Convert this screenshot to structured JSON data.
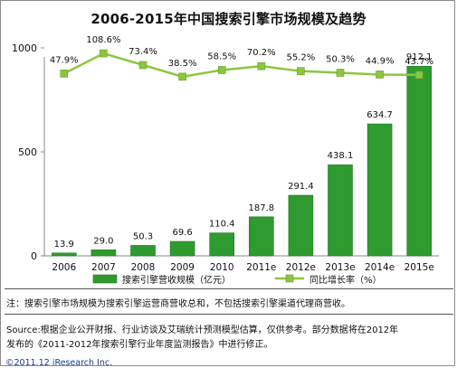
{
  "chart_data": {
    "type": "bar",
    "title": "2006-2015年中国搜索引擎市场规模及趋势",
    "categories": [
      "2006",
      "2007",
      "2008",
      "2009",
      "2010",
      "2011e",
      "2012e",
      "2013e",
      "2014e",
      "2015e"
    ],
    "series": [
      {
        "name": "搜索引擎营收规模（亿元）",
        "type": "bar",
        "axis": "left",
        "values": [
          13.9,
          29.0,
          50.3,
          69.6,
          110.4,
          187.8,
          291.4,
          438.1,
          634.7,
          912.1
        ],
        "labels": [
          "13.9",
          "29.0",
          "50.3",
          "69.6",
          "110.4",
          "187.8",
          "291.4",
          "438.1",
          "634.7",
          "912.1"
        ],
        "color": "#2f9a2f"
      },
      {
        "name": "同比增长率（%）",
        "type": "line",
        "axis": "right",
        "values": [
          47.9,
          108.6,
          73.4,
          38.5,
          58.5,
          70.2,
          55.2,
          50.3,
          44.9,
          43.7
        ],
        "labels": [
          "47.9%",
          "108.6%",
          "73.4%",
          "38.5%",
          "58.5%",
          "70.2%",
          "55.2%",
          "50.3%",
          "44.9%",
          "43.7%"
        ],
        "color": "#8cc63e"
      }
    ],
    "y_ticks": [
      "0",
      "500",
      "1000"
    ],
    "ylim": [
      0,
      1200
    ],
    "y2lim": [
      -500,
      250
    ],
    "legend_position": "bottom",
    "grid": false
  },
  "footer": {
    "note": "注：搜索引擎市场规模为搜索引擎运营商营收总和，不包括搜索引擎渠道代理商营收。",
    "source_line1": "Source:根据企业公开财报、行业访谈及艾瑞统计预测模型估算，仅供参考。部分数据将在2012年",
    "source_line2": "发布的《2011-2012年搜索引擎行业年度监测报告》中进行修正。",
    "copyright": "©2011.12 iResearch Inc."
  }
}
